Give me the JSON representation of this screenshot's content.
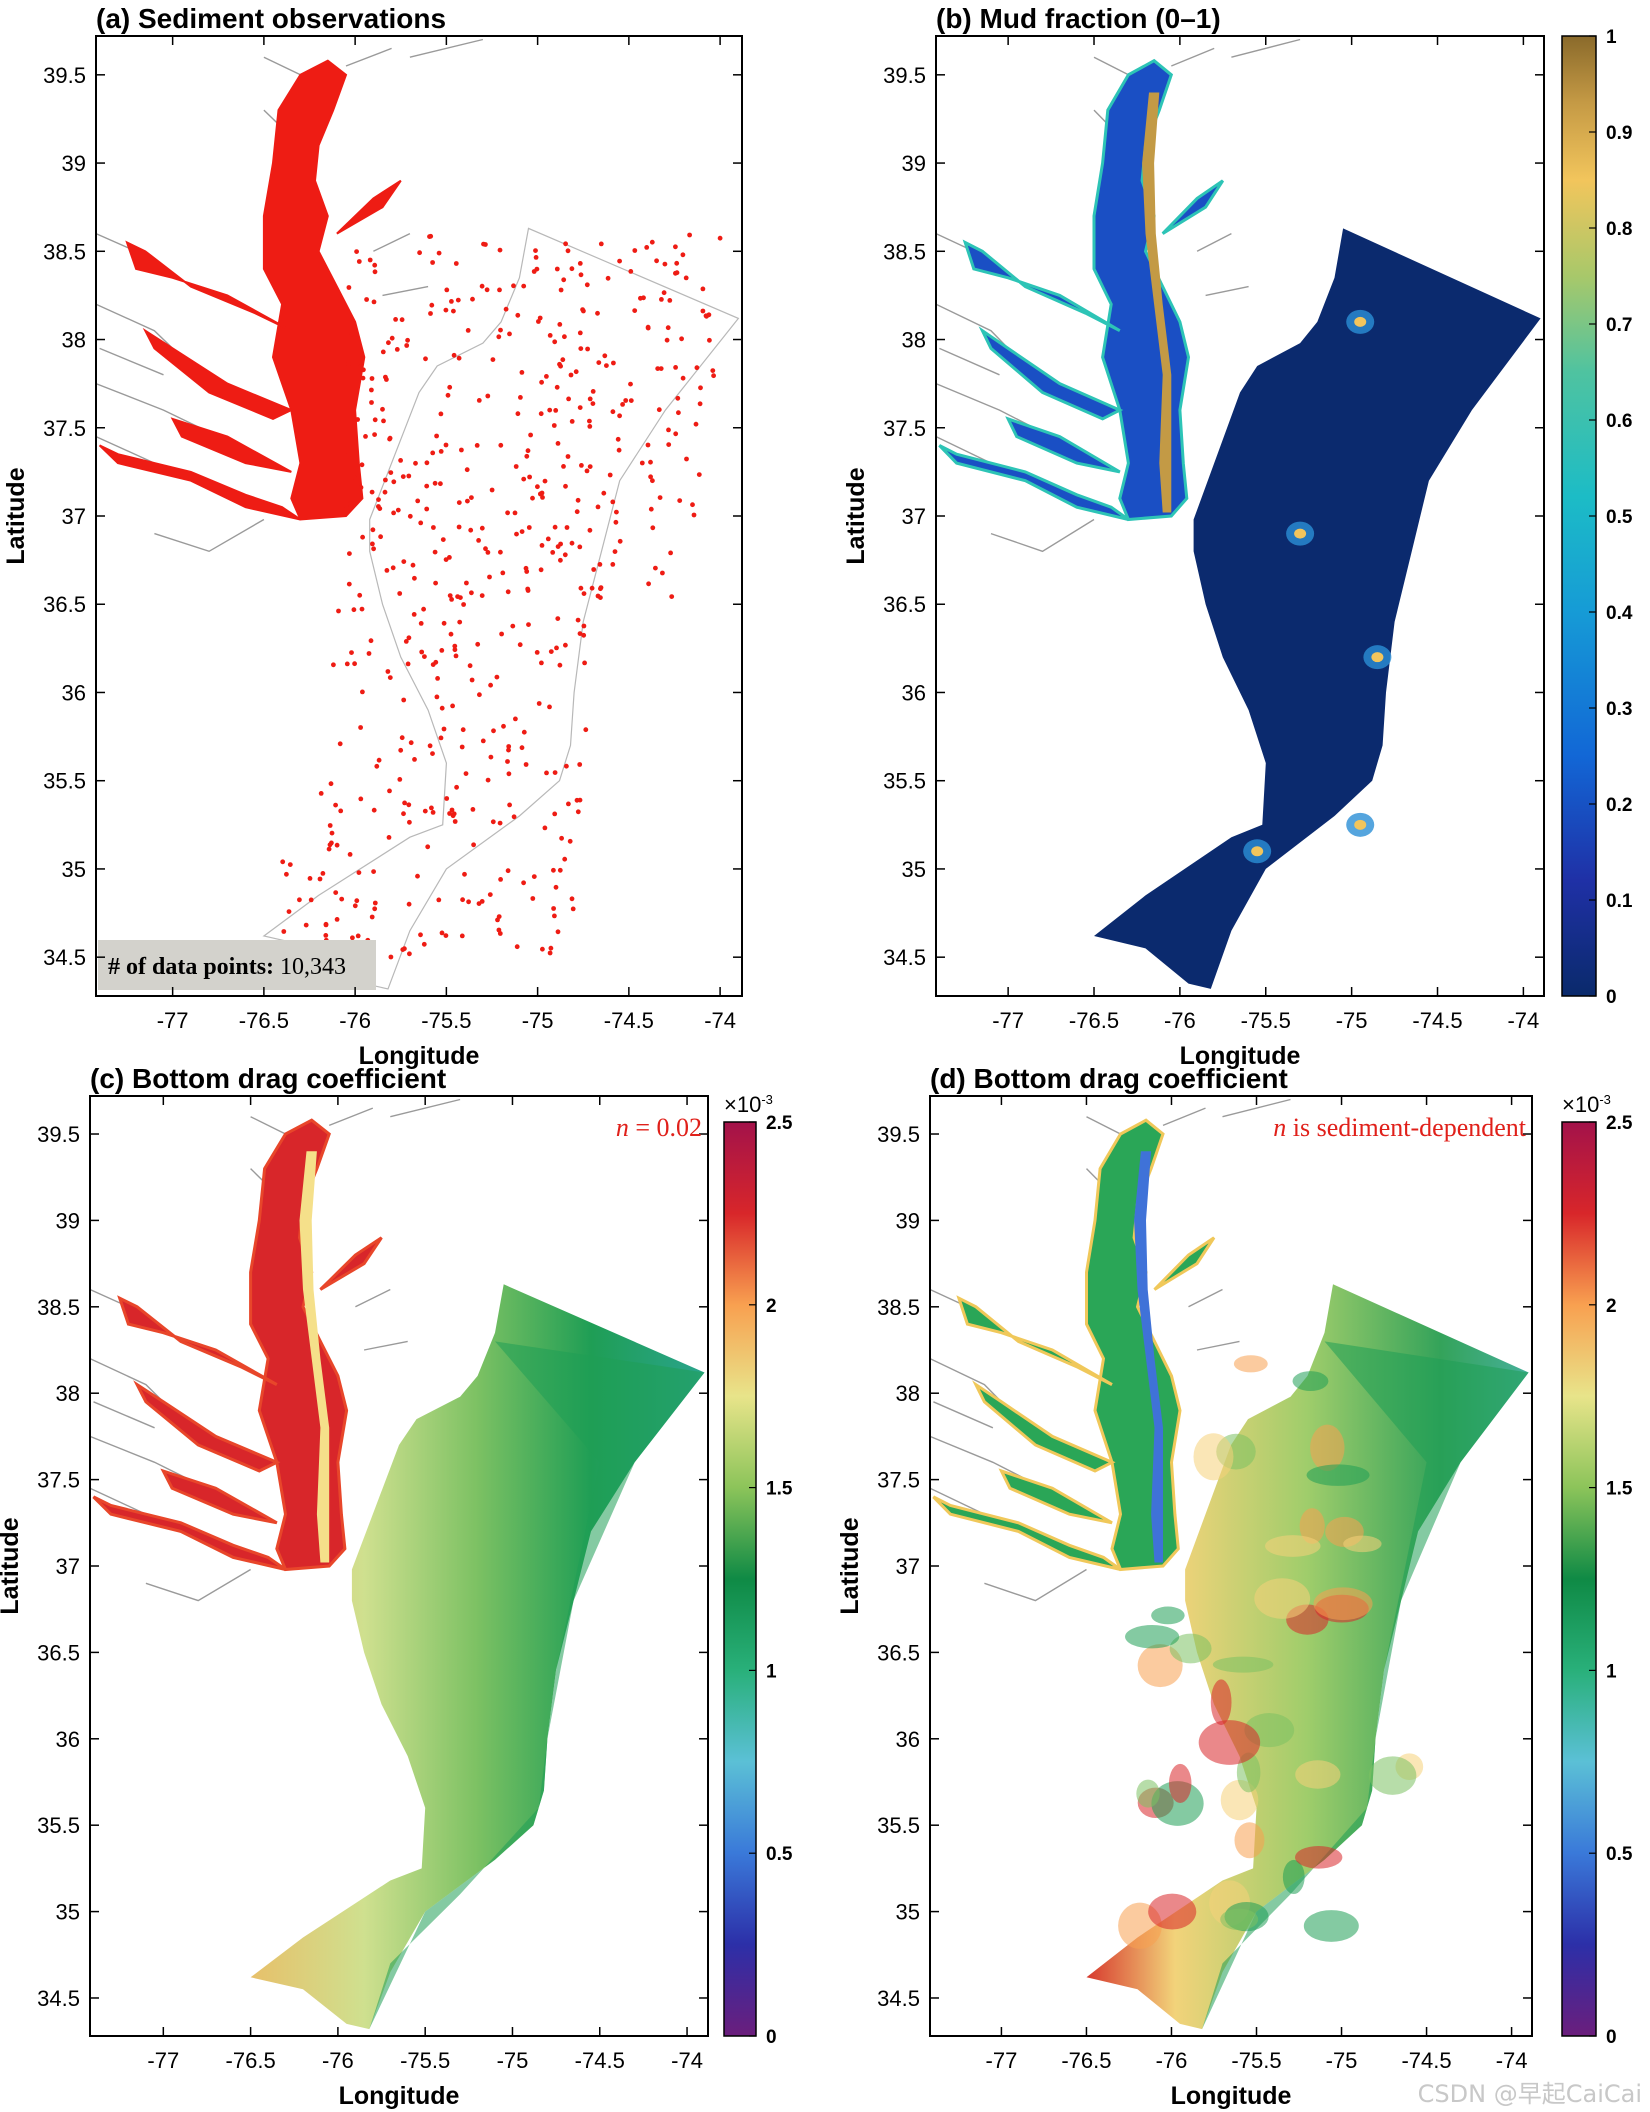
{
  "panels": [
    {
      "id": "a",
      "title": "(a) Sediment observations",
      "xlabel": "Longitude",
      "ylabel": "Latitude",
      "xticks": [
        "-77",
        "-76.5",
        "-76",
        "-75.5",
        "-75",
        "-74.5",
        "-74"
      ],
      "yticks": [
        "39.5",
        "39",
        "38.5",
        "38",
        "37.5",
        "37",
        "36.5",
        "36",
        "35.5",
        "35",
        "34.5"
      ],
      "count_label": "# of data points:",
      "count_value": "10,343",
      "marker_color": "#ee1c14"
    },
    {
      "id": "b",
      "title": "(b) Mud fraction (0–1)",
      "xlabel": "Longitude",
      "ylabel": "Latitude",
      "xticks": [
        "-77",
        "-76.5",
        "-76",
        "-75.5",
        "-75",
        "-74.5",
        "-74"
      ],
      "yticks": [
        "39.5",
        "39",
        "38.5",
        "38",
        "37.5",
        "37",
        "36.5",
        "36",
        "35.5",
        "35",
        "34.5"
      ],
      "colorbar_ticks": [
        "1",
        "0.9",
        "0.8",
        "0.7",
        "0.6",
        "0.5",
        "0.4",
        "0.3",
        "0.2",
        "0.1",
        "0"
      ],
      "colormap": "parula"
    },
    {
      "id": "c",
      "title": "(c) Bottom drag coefficient",
      "xlabel": "Longitude",
      "ylabel": "Latitude",
      "xticks": [
        "-77",
        "-76.5",
        "-76",
        "-75.5",
        "-75",
        "-74.5",
        "-74"
      ],
      "yticks": [
        "39.5",
        "39",
        "38.5",
        "38",
        "37.5",
        "37",
        "36.5",
        "36",
        "35.5",
        "35",
        "34.5"
      ],
      "annotation_var": "n",
      "annotation_text": " = 0.02",
      "colorbar_ticks": [
        "2.5",
        "2",
        "1.5",
        "1",
        "0.5",
        "0"
      ],
      "colorbar_exponent_base": "×10",
      "colorbar_exponent": "-3",
      "colormap": "spectral"
    },
    {
      "id": "d",
      "title": "(d) Bottom drag coefficient",
      "xlabel": "Longitude",
      "ylabel": "Latitude",
      "xticks": [
        "-77",
        "-76.5",
        "-76",
        "-75.5",
        "-75",
        "-74.5",
        "-74"
      ],
      "yticks": [
        "39.5",
        "39",
        "38.5",
        "38",
        "37.5",
        "37",
        "36.5",
        "36",
        "35.5",
        "35",
        "34.5"
      ],
      "annotation_var": "n",
      "annotation_text": " is sediment-dependent",
      "colorbar_ticks": [
        "2.5",
        "2",
        "1.5",
        "1",
        "0.5",
        "0"
      ],
      "colorbar_exponent_base": "×10",
      "colorbar_exponent": "-3",
      "colormap": "spectral"
    }
  ],
  "watermark": "CSDN @早起CaiCai",
  "colors": {
    "ocean_low": "#0b2a6e",
    "drag_green": "#1f9e55",
    "drag_yellow": "#f5e08a",
    "drag_red": "#d8262a",
    "river_line": "#9a9a9a",
    "count_box": "#d3d2cc"
  }
}
